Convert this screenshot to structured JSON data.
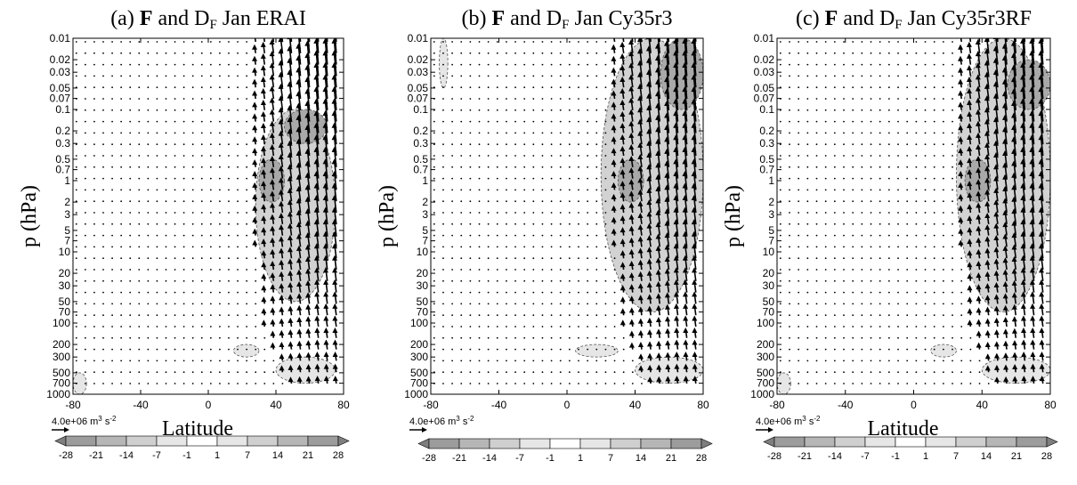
{
  "chart_data": [
    {
      "type": "vector-contour",
      "title_prefix": "(a)",
      "title_bold": "F",
      "title_mid": "and D",
      "title_sub": "F",
      "title_suffix": "Jan ERAI",
      "xlabel": "Latitude",
      "ylabel": "p (hPa)",
      "xlim": [
        -80,
        80
      ],
      "x_ticks": [
        -80,
        -40,
        0,
        40,
        80
      ],
      "y_ticks": [
        "0.01",
        "0.02",
        "0.03",
        "0.05",
        "0.07",
        "0.1",
        "0.2",
        "0.3",
        "0.5",
        "0.7",
        "1",
        "2",
        "3",
        "5",
        "7",
        "10",
        "20",
        "30",
        "50",
        "70",
        "100",
        "200",
        "300",
        "500",
        "700",
        "1000"
      ],
      "reference_vector": "4.0e+06 m",
      "reference_vector_sup": "3",
      "reference_vector_unit": "s",
      "reference_vector_unit_sup": "-2",
      "colorbar_levels": [
        "-28",
        "-21",
        "-14",
        "-7",
        "-1",
        "1",
        "7",
        "14",
        "21",
        "28"
      ],
      "shading_regions": [
        {
          "lat_range": [
            28,
            75
          ],
          "p_range": [
            0.1,
            50
          ],
          "level": 14
        },
        {
          "lat_range": [
            45,
            70
          ],
          "p_range": [
            0.1,
            0.3
          ],
          "level": 21
        },
        {
          "lat_range": [
            30,
            45
          ],
          "p_range": [
            0.5,
            2
          ],
          "level": 21
        },
        {
          "lat_range": [
            15,
            30
          ],
          "p_range": [
            200,
            300
          ],
          "level": 7
        },
        {
          "lat_range": [
            40,
            75
          ],
          "p_range": [
            300,
            700
          ],
          "level": 7
        },
        {
          "lat_range": [
            -80,
            -72
          ],
          "p_range": [
            500,
            1000
          ],
          "level": 7
        }
      ]
    },
    {
      "type": "vector-contour",
      "title_prefix": "(b)",
      "title_bold": "F",
      "title_mid": "and D",
      "title_sub": "F",
      "title_suffix": "Jan Cy35r3",
      "xlabel": "",
      "ylabel": "p (hPa)",
      "xlim": [
        -80,
        80
      ],
      "x_ticks": [
        -80,
        -40,
        0,
        40,
        80
      ],
      "y_ticks": [
        "0.01",
        "0.02",
        "0.03",
        "0.05",
        "0.07",
        "0.1",
        "0.2",
        "0.3",
        "0.5",
        "0.7",
        "1",
        "2",
        "3",
        "5",
        "7",
        "10",
        "20",
        "30",
        "50",
        "70",
        "100",
        "200",
        "300",
        "500",
        "700",
        "1000"
      ],
      "reference_vector": "4.0e+06 m",
      "reference_vector_sup": "3",
      "reference_vector_unit": "s",
      "reference_vector_unit_sup": "-2",
      "colorbar_levels": [
        "-28",
        "-21",
        "-14",
        "-7",
        "-1",
        "1",
        "7",
        "14",
        "21",
        "28"
      ],
      "shading_regions": [
        {
          "lat_range": [
            20,
            80
          ],
          "p_range": [
            0.01,
            70
          ],
          "level": 14
        },
        {
          "lat_range": [
            55,
            80
          ],
          "p_range": [
            0.01,
            0.1
          ],
          "level": 21
        },
        {
          "lat_range": [
            30,
            45
          ],
          "p_range": [
            0.5,
            2
          ],
          "level": 21
        },
        {
          "lat_range": [
            5,
            30
          ],
          "p_range": [
            200,
            300
          ],
          "level": 7
        },
        {
          "lat_range": [
            40,
            80
          ],
          "p_range": [
            300,
            700
          ],
          "level": 7
        },
        {
          "lat_range": [
            -75,
            -70
          ],
          "p_range": [
            0.01,
            0.05
          ],
          "level": 7
        }
      ]
    },
    {
      "type": "vector-contour",
      "title_prefix": "(c)",
      "title_bold": "F",
      "title_mid": "and D",
      "title_sub": "F",
      "title_suffix": "Jan Cy35r3RF",
      "xlabel": "Latitude",
      "ylabel": "p (hPa)",
      "xlim": [
        -80,
        80
      ],
      "x_ticks": [
        -80,
        -40,
        0,
        40,
        80
      ],
      "y_ticks": [
        "0.01",
        "0.02",
        "0.03",
        "0.05",
        "0.07",
        "0.1",
        "0.2",
        "0.3",
        "0.5",
        "0.7",
        "1",
        "2",
        "3",
        "5",
        "7",
        "10",
        "20",
        "30",
        "50",
        "70",
        "100",
        "200",
        "300",
        "500",
        "700",
        "1000"
      ],
      "reference_vector": "4.0e+06 m",
      "reference_vector_sup": "3",
      "reference_vector_unit": "s",
      "reference_vector_unit_sup": "-2",
      "colorbar_levels": [
        "-28",
        "-21",
        "-14",
        "-7",
        "-1",
        "1",
        "7",
        "14",
        "21",
        "28"
      ],
      "shading_regions": [
        {
          "lat_range": [
            25,
            80
          ],
          "p_range": [
            0.01,
            70
          ],
          "level": 14
        },
        {
          "lat_range": [
            55,
            80
          ],
          "p_range": [
            0.02,
            0.1
          ],
          "level": 21
        },
        {
          "lat_range": [
            30,
            45
          ],
          "p_range": [
            0.5,
            2
          ],
          "level": 21
        },
        {
          "lat_range": [
            10,
            25
          ],
          "p_range": [
            200,
            300
          ],
          "level": 7
        },
        {
          "lat_range": [
            40,
            80
          ],
          "p_range": [
            300,
            700
          ],
          "level": 7
        },
        {
          "lat_range": [
            -80,
            -72
          ],
          "p_range": [
            500,
            1000
          ],
          "level": 7
        }
      ]
    }
  ],
  "colors": {
    "level_7": "#e6e6e6",
    "level_14": "#d2d2d2",
    "level_21": "#a9a9a9",
    "level_28": "#8a8a8a",
    "cb_fills": [
      "#7f7f7f",
      "#9c9c9c",
      "#b6b6b6",
      "#cfcfcf",
      "#e6e6e6",
      "#ffffff",
      "#e6e6e6",
      "#cfcfcf",
      "#b6b6b6",
      "#9c9c9c",
      "#7f7f7f"
    ]
  }
}
